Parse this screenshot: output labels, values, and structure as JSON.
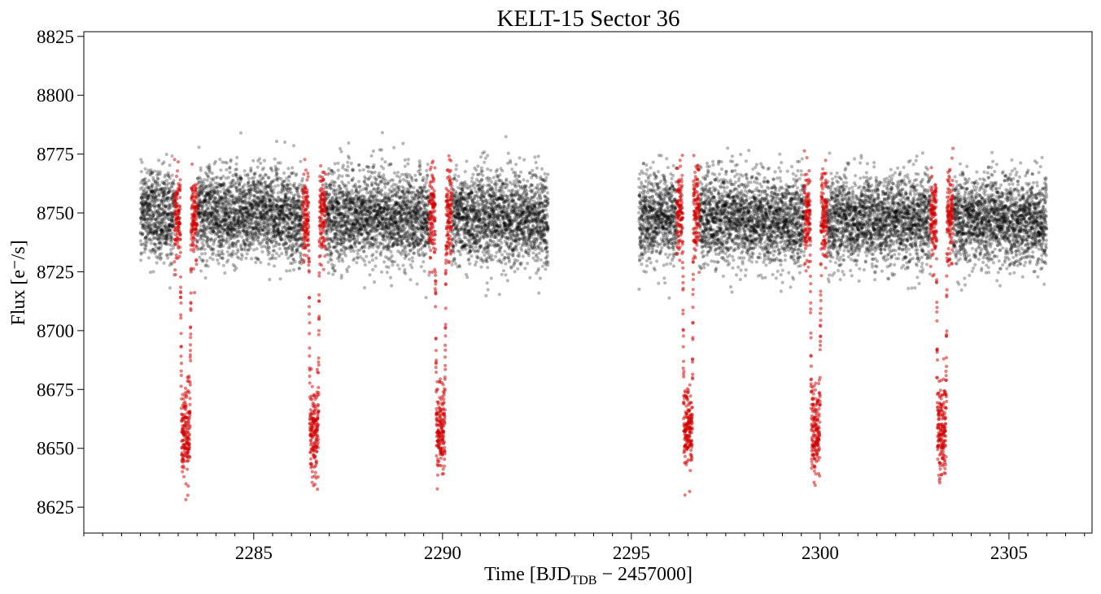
{
  "chart_data": {
    "type": "scatter",
    "title": "KELT-15 Sector 36",
    "xlabel": {
      "main": "Time [BJD",
      "sub": "TDB",
      "suffix": " − 2457000]"
    },
    "ylabel": "Flux [e⁻/s]",
    "xlim": [
      2280.5,
      2307.2
    ],
    "ylim": [
      8614,
      8827
    ],
    "x_ticks": [
      2285,
      2290,
      2295,
      2300,
      2305
    ],
    "x_tick_labels": [
      "2285",
      "2290",
      "2295",
      "2300",
      "2305"
    ],
    "x_minor_step": 0.5,
    "y_ticks": [
      8625,
      8650,
      8675,
      8700,
      8725,
      8750,
      8775,
      8800,
      8825
    ],
    "y_tick_labels": [
      "8625",
      "8650",
      "8675",
      "8700",
      "8725",
      "8750",
      "8775",
      "8800",
      "8825"
    ],
    "grid": false,
    "series": [
      {
        "style": "out-of-transit",
        "color": "#000000",
        "alpha": 0.28,
        "segments": [
          {
            "x_start": 2282.0,
            "x_end": 2292.8,
            "step": 0.00139,
            "baseline": 8750,
            "scatter_sd": 9.5
          },
          {
            "x_start": 2295.2,
            "x_end": 2306.0,
            "step": 0.00139,
            "baseline": 8748,
            "scatter_sd": 9.5
          }
        ]
      },
      {
        "style": "in-transit",
        "color": "#d00000",
        "alpha": 0.5,
        "transit_centers": [
          2283.2,
          2286.6,
          2289.95,
          2296.5,
          2299.88,
          2303.22
        ],
        "transit_half_width": 0.3,
        "ingress_duration": 0.04,
        "transit_depth": 92,
        "baseline": 8749,
        "scatter_sd": 9.5,
        "step": 0.00139
      }
    ]
  }
}
